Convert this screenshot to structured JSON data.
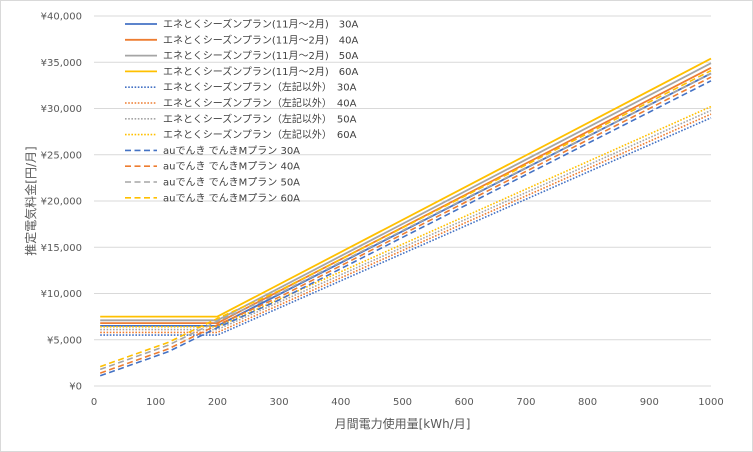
{
  "chart_data": {
    "type": "line",
    "title": "",
    "xlabel": "月間電力使用量[kWh/月]",
    "ylabel": "推定電気料金[円/月]",
    "xlim": [
      0,
      1000
    ],
    "ylim": [
      0,
      40000
    ],
    "x_ticks": [
      "0",
      "100",
      "200",
      "300",
      "400",
      "500",
      "600",
      "700",
      "800",
      "900",
      "1000"
    ],
    "y_ticks": [
      "¥0",
      "¥5,000",
      "¥10,000",
      "¥15,000",
      "¥20,000",
      "¥25,000",
      "¥30,000",
      "¥35,000",
      "¥40,000"
    ],
    "grid": "horizontal",
    "legend_position": "top-left",
    "series": [
      {
        "name": "エネとくシーズンプラン(11月～2月)　30A",
        "color": "#4472C4",
        "style": "solid",
        "points": [
          [
            10,
            6500
          ],
          [
            200,
            6500
          ],
          [
            1000,
            33800
          ]
        ]
      },
      {
        "name": "エネとくシーズンプラン(11月～2月)　40A",
        "color": "#ED7D31",
        "style": "solid",
        "points": [
          [
            10,
            6800
          ],
          [
            200,
            6800
          ],
          [
            1000,
            34400
          ]
        ]
      },
      {
        "name": "エネとくシーズンプラン(11月～2月)　50A",
        "color": "#A5A5A5",
        "style": "solid",
        "points": [
          [
            10,
            7100
          ],
          [
            200,
            7100
          ],
          [
            1000,
            34900
          ]
        ]
      },
      {
        "name": "エネとくシーズンプラン(11月～2月)　60A",
        "color": "#FFC000",
        "style": "solid",
        "points": [
          [
            10,
            7500
          ],
          [
            200,
            7500
          ],
          [
            1000,
            35400
          ]
        ]
      },
      {
        "name": "エネとくシーズンプラン（左記以外）　30A",
        "color": "#4472C4",
        "style": "dotted",
        "points": [
          [
            10,
            5500
          ],
          [
            200,
            5500
          ],
          [
            1000,
            29000
          ]
        ]
      },
      {
        "name": "エネとくシーズンプラン（左記以外）　40A",
        "color": "#ED7D31",
        "style": "dotted",
        "points": [
          [
            10,
            5800
          ],
          [
            200,
            5800
          ],
          [
            1000,
            29400
          ]
        ]
      },
      {
        "name": "エネとくシーズンプラン（左記以外）　50A",
        "color": "#A5A5A5",
        "style": "dotted",
        "points": [
          [
            10,
            6100
          ],
          [
            200,
            6100
          ],
          [
            1000,
            29800
          ]
        ]
      },
      {
        "name": "エネとくシーズンプラン（左記以外）　60A",
        "color": "#FFC000",
        "style": "dotted",
        "points": [
          [
            10,
            6400
          ],
          [
            200,
            6400
          ],
          [
            1000,
            30200
          ]
        ]
      },
      {
        "name": "auでんき でんきMプラン 30A",
        "color": "#4472C4",
        "style": "dashed",
        "points": [
          [
            10,
            1100
          ],
          [
            120,
            3700
          ],
          [
            200,
            6300
          ],
          [
            300,
            9300
          ],
          [
            1000,
            33000
          ]
        ]
      },
      {
        "name": "auでんき でんきMプラン 40A",
        "color": "#ED7D31",
        "style": "dashed",
        "points": [
          [
            10,
            1400
          ],
          [
            120,
            4000
          ],
          [
            200,
            6600
          ],
          [
            300,
            9600
          ],
          [
            1000,
            33400
          ]
        ]
      },
      {
        "name": "auでんき でんきMプラン 50A",
        "color": "#A5A5A5",
        "style": "dashed",
        "points": [
          [
            10,
            1800
          ],
          [
            120,
            4400
          ],
          [
            200,
            7000
          ],
          [
            300,
            10000
          ],
          [
            1000,
            33800
          ]
        ]
      },
      {
        "name": "auでんき でんきMプラン 60A",
        "color": "#FFC000",
        "style": "dashed",
        "points": [
          [
            10,
            2100
          ],
          [
            120,
            4700
          ],
          [
            200,
            7300
          ],
          [
            300,
            10300
          ],
          [
            1000,
            34100
          ]
        ]
      }
    ]
  }
}
